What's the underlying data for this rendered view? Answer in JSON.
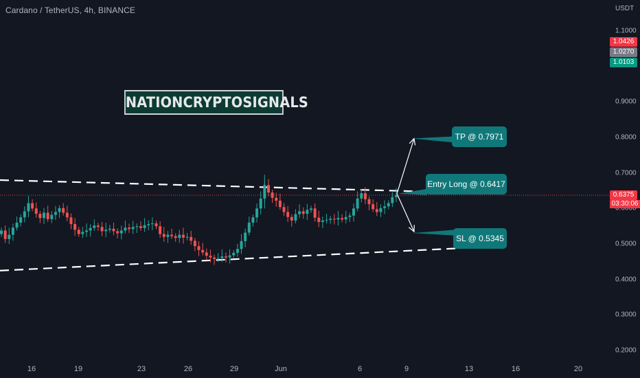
{
  "header": {
    "symbol_line": "Cardano / TetherUS, 4h, BINANCE",
    "unit": "USDT"
  },
  "brand": {
    "text": "NATIONCRYPTOSIGNALS"
  },
  "annotations": {
    "tp": "TP @ 0.7971",
    "entry": "Entry Long @ 0.6417",
    "sl": "SL @ 0.5345"
  },
  "price_tags": {
    "high": "1.0426",
    "mid": "1.0270",
    "low": "1.0103",
    "current": "0.6375",
    "countdown": "03:30:06"
  },
  "colors": {
    "background": "#131722",
    "up": "#26a69a",
    "down": "#ef5350",
    "callout": "#11787a",
    "tag_red": "#f23645",
    "tag_grey": "#787b86",
    "tag_green": "#089981"
  },
  "chart_data": {
    "type": "candlestick",
    "title": "Cardano / TetherUS, 4h, BINANCE",
    "ylabel": "USDT",
    "ylim": [
      0.18,
      1.16
    ],
    "y_ticks": [
      "1.1000",
      "0.9000",
      "0.8000",
      "0.7000",
      "0.6000",
      "0.5000",
      "0.4000",
      "0.3000",
      "0.2000"
    ],
    "x_ticks": [
      "16",
      "19",
      "23",
      "26",
      "29",
      "Jun",
      "6",
      "9",
      "13",
      "16",
      "20"
    ],
    "grid": false,
    "trendlines": [
      {
        "name": "upper",
        "from": [
          0,
          0.68
        ],
        "to": [
          670,
          0.645
        ]
      },
      {
        "name": "lower",
        "from": [
          0,
          0.425
        ],
        "to": [
          690,
          0.49
        ]
      }
    ],
    "levels": {
      "tp": 0.7971,
      "entry": 0.6417,
      "sl": 0.5345,
      "current": 0.6375
    },
    "candles_close": [
      0.538,
      0.514,
      0.526,
      0.546,
      0.56,
      0.575,
      0.592,
      0.615,
      0.6,
      0.585,
      0.573,
      0.588,
      0.57,
      0.582,
      0.59,
      0.601,
      0.588,
      0.575,
      0.556,
      0.54,
      0.528,
      0.534,
      0.538,
      0.545,
      0.552,
      0.548,
      0.536,
      0.54,
      0.543,
      0.536,
      0.53,
      0.538,
      0.546,
      0.542,
      0.548,
      0.55,
      0.545,
      0.553,
      0.556,
      0.558,
      0.55,
      0.528,
      0.52,
      0.526,
      0.522,
      0.517,
      0.526,
      0.518,
      0.52,
      0.509,
      0.494,
      0.483,
      0.476,
      0.467,
      0.462,
      0.458,
      0.46,
      0.465,
      0.462,
      0.468,
      0.475,
      0.486,
      0.508,
      0.532,
      0.56,
      0.575,
      0.6,
      0.628,
      0.666,
      0.645,
      0.63,
      0.622,
      0.604,
      0.59,
      0.576,
      0.566,
      0.584,
      0.592,
      0.585,
      0.596,
      0.6,
      0.574,
      0.562,
      0.566,
      0.568,
      0.571,
      0.569,
      0.573,
      0.569,
      0.576,
      0.58,
      0.6,
      0.628,
      0.643,
      0.626,
      0.612,
      0.598,
      0.59,
      0.601,
      0.606,
      0.615,
      0.632,
      0.6375
    ]
  }
}
